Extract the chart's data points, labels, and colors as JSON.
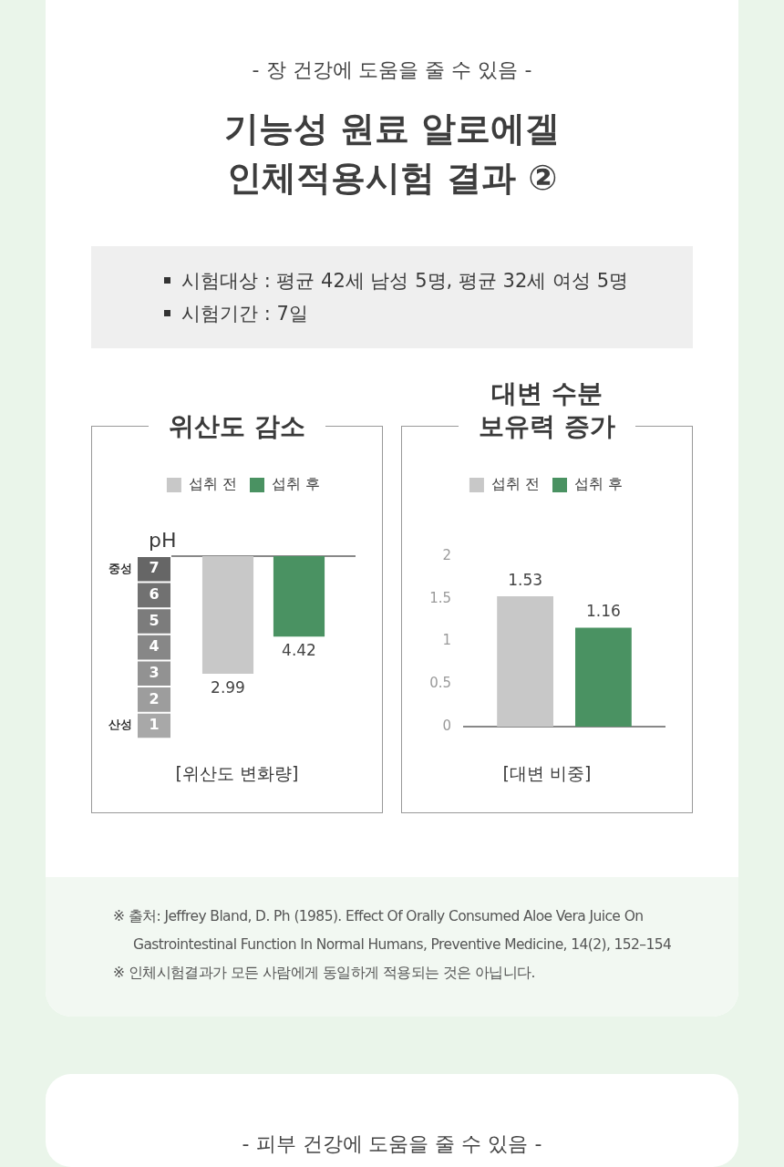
{
  "chart_data": [
    {
      "type": "other",
      "subtitle": "- 장 건강에 도움을 줄 수 있음 -",
      "title": "기능성 원료 알로에겔\n인체적용시험 결과 ②",
      "annotations": [
        "시험대상 : 평균 42세 남성 5명, 평균 32세 여성 5명",
        "시험기간 : 7일"
      ]
    },
    {
      "type": "bar",
      "title": "위산도 감소",
      "ylabel": "pH",
      "xlabel": "[위산도 변화량]",
      "categories": [
        null
      ],
      "series": [
        {
          "name": "섭취 전",
          "color": "#c8c8c8",
          "values": [
            -4.51
          ],
          "base": [
            7.5
          ],
          "value_labels": [
            "2.99"
          ]
        },
        {
          "name": "섭취 후",
          "color": "#4a9262",
          "values": [
            -3.08
          ],
          "base": [
            7.5
          ],
          "value_labels": [
            "4.42"
          ]
        }
      ],
      "ylim": [
        1,
        7.5
      ],
      "yticks": [
        1,
        2,
        3,
        4,
        5,
        6,
        7
      ],
      "annotations": [
        "중성",
        "산성"
      ],
      "legend": "top",
      "grid": false,
      "tick_labels": "y"
    },
    {
      "type": "bar",
      "title": "대변 수분\n보유력 증가",
      "xlabel": "[대변 비중]",
      "categories": [
        null
      ],
      "series": [
        {
          "name": "섭취 전",
          "color": "#c8c8c8",
          "values": [
            1.53
          ]
        },
        {
          "name": "섭취 후",
          "color": "#4a9262",
          "values": [
            1.16
          ]
        }
      ],
      "ylim": [
        0,
        2
      ],
      "yticks": [
        0,
        0.5,
        1,
        1.5,
        2
      ],
      "data_labels": true,
      "legend": "top",
      "grid": false,
      "tick_labels": "y"
    },
    {
      "type": "other",
      "annotations": [
        "※ 출처: Jeffrey Bland, D. Ph (1985). Effect Of Orally Consumed Aloe Vera Juice On Gastrointestinal Function In Normal Humans, Preventive Medicine, 14(2), 152–154",
        "※ 인체시험결과가 모든 사람에게 동일하게 적용되는 것은 아닙니다."
      ]
    },
    {
      "type": "other",
      "subtitle": "- 피부 건강에 도움을 줄 수 있음 -"
    }
  ]
}
